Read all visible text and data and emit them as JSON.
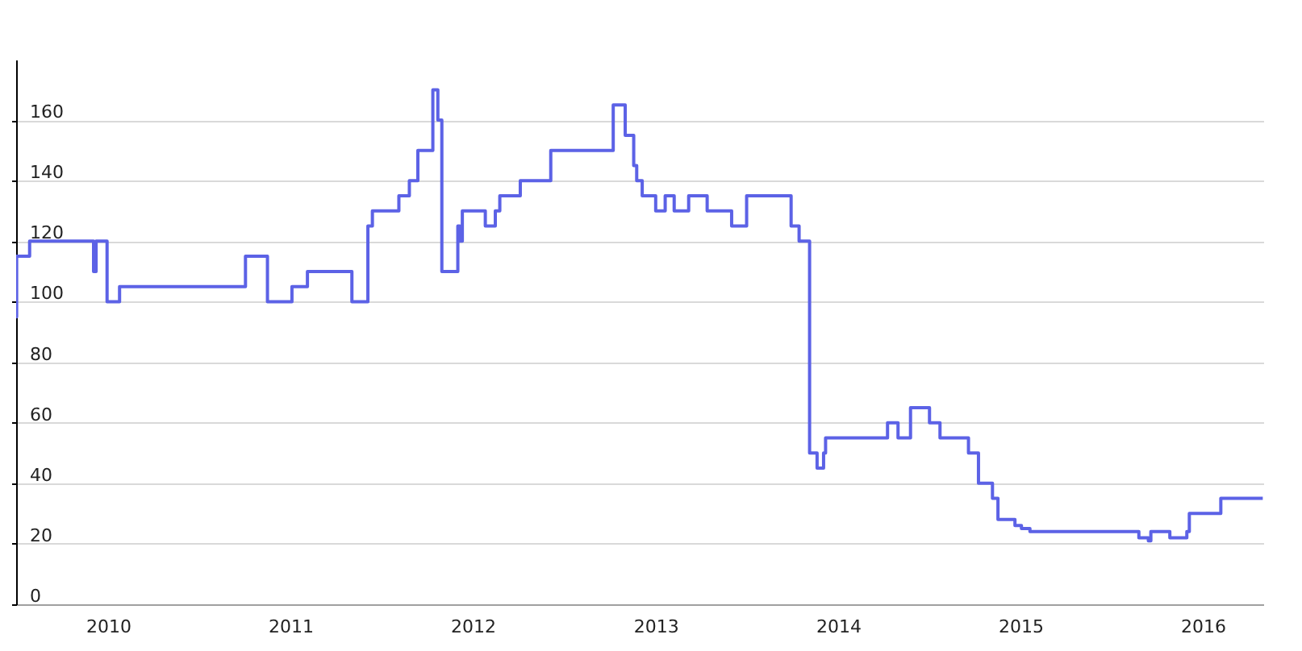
{
  "chart_data": {
    "type": "step",
    "x": [
      "2009-07-01",
      "2009-07-02",
      "2009-07-28",
      "2009-12-03",
      "2009-12-08",
      "2009-12-30",
      "2010-01-24",
      "2010-10-03",
      "2010-11-16",
      "2011-01-04",
      "2011-02-04",
      "2011-05-04",
      "2011-06-05",
      "2011-06-14",
      "2011-08-06",
      "2011-08-27",
      "2011-09-13",
      "2011-10-13",
      "2011-10-23",
      "2011-10-31",
      "2011-12-02",
      "2011-12-06",
      "2011-12-11",
      "2012-01-26",
      "2012-02-15",
      "2012-02-24",
      "2012-04-05",
      "2012-06-05",
      "2012-10-08",
      "2012-11-01",
      "2012-11-18",
      "2012-11-24",
      "2012-12-05",
      "2013-01-01",
      "2013-01-20",
      "2013-02-07",
      "2013-03-08",
      "2013-04-14",
      "2013-06-02",
      "2013-07-02",
      "2013-09-29",
      "2013-10-15",
      "2013-11-05",
      "2013-11-20",
      "2013-12-03",
      "2013-12-07",
      "2014-04-10",
      "2014-05-01",
      "2014-05-26",
      "2014-07-03",
      "2014-07-24",
      "2014-09-19",
      "2014-10-09",
      "2014-11-06",
      "2014-11-17",
      "2014-12-21",
      "2015-01-03",
      "2015-01-20",
      "2015-08-26",
      "2015-09-14",
      "2015-09-19",
      "2015-10-27",
      "2015-11-30",
      "2015-12-05",
      "2016-02-06",
      "2016-04-30"
    ],
    "values": [
      95,
      115,
      120,
      110,
      120,
      100,
      105,
      115,
      100,
      105,
      110,
      100,
      125,
      130,
      135,
      140,
      150,
      170,
      160,
      110,
      125,
      120,
      130,
      125,
      130,
      135,
      140,
      150,
      165,
      155,
      145,
      140,
      135,
      130,
      135,
      130,
      135,
      130,
      125,
      135,
      125,
      120,
      50,
      45,
      50,
      55,
      60,
      55,
      65,
      60,
      55,
      50,
      40,
      35,
      28,
      26,
      25,
      24,
      22,
      21,
      24,
      22,
      24,
      30,
      35,
      35
    ],
    "color": "#5c62e6",
    "xlim": [
      "2009-07-01",
      "2016-05-01"
    ],
    "xticks": [
      "2010",
      "2011",
      "2012",
      "2013",
      "2014",
      "2015",
      "2016"
    ],
    "ylim": [
      0,
      180
    ],
    "yticks": [
      0,
      20,
      40,
      60,
      80,
      100,
      120,
      140,
      160
    ],
    "grid": "y"
  }
}
